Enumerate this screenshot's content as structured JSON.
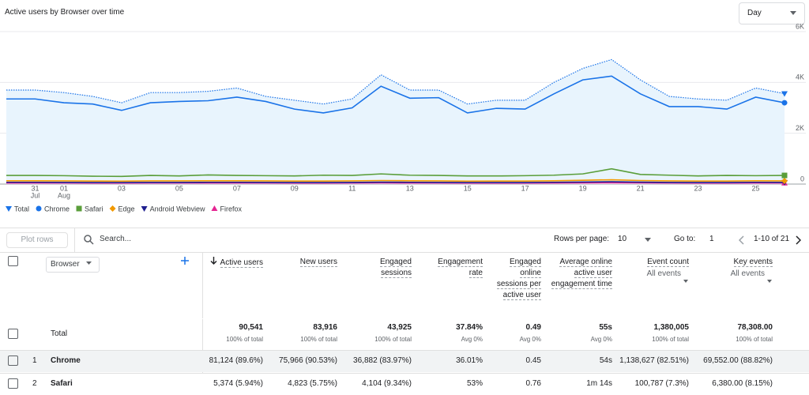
{
  "header": {
    "title": "Active users by Browser over time",
    "granularity": "Day"
  },
  "chart_data": {
    "type": "line",
    "categories": [
      null,
      "31",
      "01",
      null,
      "03",
      null,
      "05",
      null,
      "07",
      null,
      "09",
      null,
      "11",
      null,
      "13",
      null,
      "15",
      null,
      "17",
      null,
      "19",
      null,
      "21",
      null,
      "23",
      null,
      "25",
      null
    ],
    "category_months": [
      null,
      "Jul",
      "Aug",
      null,
      null,
      null,
      null,
      null,
      null,
      null,
      null,
      null,
      null,
      null,
      null,
      null,
      null,
      null,
      null,
      null,
      null,
      null,
      null,
      null,
      null,
      null,
      null,
      null
    ],
    "series": [
      {
        "name": "Total",
        "color": "#1a73e8",
        "style": "dotted",
        "area": true,
        "values": [
          3700,
          3700,
          3600,
          3450,
          3200,
          3600,
          3600,
          3650,
          3780,
          3450,
          3300,
          3150,
          3350,
          4300,
          3700,
          3700,
          3150,
          3300,
          3300,
          4000,
          4550,
          4900,
          4100,
          3450,
          3350,
          3300,
          3780,
          3560
        ]
      },
      {
        "name": "Chrome",
        "color": "#1a73e8",
        "style": "solid",
        "values": [
          3350,
          3350,
          3200,
          3150,
          2900,
          3200,
          3250,
          3280,
          3420,
          3250,
          2950,
          2800,
          3000,
          3850,
          3380,
          3400,
          2800,
          2980,
          2950,
          3550,
          4100,
          4250,
          3550,
          3050,
          3050,
          2950,
          3420,
          3200
        ]
      },
      {
        "name": "Safari",
        "color": "#5a9e3a",
        "style": "solid",
        "values": [
          340,
          340,
          330,
          310,
          300,
          340,
          320,
          360,
          340,
          330,
          320,
          350,
          340,
          400,
          350,
          340,
          320,
          320,
          330,
          350,
          400,
          600,
          380,
          350,
          320,
          340,
          330,
          340
        ]
      },
      {
        "name": "Edge",
        "color": "#f29900",
        "style": "solid",
        "values": [
          130,
          130,
          125,
          120,
          115,
          125,
          125,
          130,
          130,
          125,
          120,
          120,
          125,
          140,
          130,
          125,
          115,
          120,
          120,
          130,
          150,
          170,
          140,
          125,
          120,
          120,
          130,
          125
        ]
      },
      {
        "name": "Android Webview",
        "color": "#1f1f8f",
        "style": "solid",
        "values": [
          70,
          70,
          65,
          60,
          60,
          65,
          65,
          70,
          70,
          65,
          60,
          60,
          65,
          75,
          70,
          65,
          60,
          60,
          60,
          70,
          80,
          90,
          75,
          65,
          60,
          60,
          70,
          65
        ]
      },
      {
        "name": "Firefox",
        "color": "#e52592",
        "style": "solid",
        "values": [
          40,
          40,
          40,
          35,
          35,
          40,
          40,
          40,
          40,
          40,
          35,
          35,
          40,
          45,
          40,
          40,
          35,
          35,
          35,
          40,
          45,
          50,
          45,
          40,
          35,
          35,
          40,
          40
        ]
      }
    ],
    "ylim": [
      0,
      6000
    ],
    "yticks": [
      0,
      {
        "value": 2000,
        "label": "2K"
      },
      {
        "value": 4000,
        "label": "4K"
      },
      {
        "value": 6000,
        "label": "6K"
      }
    ],
    "grid": true,
    "legend": "bottom-left"
  },
  "toolbar": {
    "plot_rows": "Plot rows",
    "search": "Search...",
    "rows_per_page_label": "Rows per page:",
    "rows_per_page": "10",
    "goto_label": "Go to:",
    "goto": "1",
    "range": "1-10 of 21"
  },
  "table": {
    "dimension": "Browser",
    "columns": [
      {
        "label": "Active users",
        "sub": null
      },
      {
        "label": "New users",
        "sub": null
      },
      {
        "label": "Engaged sessions",
        "sub": null
      },
      {
        "label": "Engagement rate",
        "sub": null
      },
      {
        "label": "Engaged online sessions per active user",
        "sub": null
      },
      {
        "label": "Average online active user engagement time",
        "sub": null
      },
      {
        "label": "Event count",
        "sub": "All events"
      },
      {
        "label": "Key events",
        "sub": "All events"
      }
    ],
    "total": {
      "label": "Total",
      "cells": [
        [
          "90,541",
          "100% of total"
        ],
        [
          "83,916",
          "100% of total"
        ],
        [
          "43,925",
          "100% of total"
        ],
        [
          "37.84%",
          "Avg 0%"
        ],
        [
          "0.49",
          "Avg 0%"
        ],
        [
          "55s",
          "Avg 0%"
        ],
        [
          "1,380,005",
          "100% of total"
        ],
        [
          "78,308.00",
          "100% of total"
        ]
      ]
    },
    "rows": [
      {
        "index": "1",
        "name": "Chrome",
        "cells": [
          "81,124 (89.6%)",
          "75,966 (90.53%)",
          "36,882 (83.97%)",
          "36.01%",
          "0.45",
          "54s",
          "1,138,627 (82.51%)",
          "69,552.00 (88.82%)"
        ]
      },
      {
        "index": "2",
        "name": "Safari",
        "cells": [
          "5,374 (5.94%)",
          "4,823 (5.75%)",
          "4,104 (9.34%)",
          "53%",
          "0.76",
          "1m 14s",
          "100,787 (7.3%)",
          "6,380.00 (8.15%)"
        ]
      }
    ]
  }
}
